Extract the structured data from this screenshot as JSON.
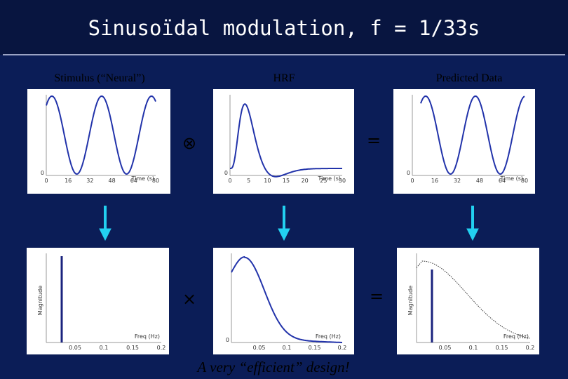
{
  "header": {
    "title": "Sinusoïdal modulation, f = 1/33s"
  },
  "columns": [
    "Stimulus (“Neural”)",
    "HRF",
    "Predicted Data"
  ],
  "operators": [
    "⊗",
    "=",
    "×",
    "="
  ],
  "panels": [
    {
      "xticks": [
        "0",
        "16",
        "32",
        "48",
        "64",
        "80"
      ],
      "xlabel": "Time (s)",
      "origin": "0"
    },
    {
      "xticks": [
        "0",
        "5",
        "10",
        "15",
        "20",
        "25",
        "30"
      ],
      "xlabel": "Time (s)",
      "origin": "0"
    },
    {
      "xticks": [
        "0",
        "16",
        "32",
        "48",
        "64",
        "80"
      ],
      "xlabel": "Time (s)",
      "origin": "0"
    },
    {
      "xticks": [
        "0.05",
        "0.1",
        "0.15",
        "0.2"
      ],
      "xlabel": "Freq (Hz)",
      "ylabel": "Magnitude"
    },
    {
      "xticks": [
        "0.05",
        "0.1",
        "0.15",
        "0.2"
      ],
      "xlabel": "Freq (Hz)",
      "origin": "0"
    },
    {
      "xticks": [
        "0.05",
        "0.1",
        "0.15",
        "0.2"
      ],
      "xlabel": "Freq (Hz)",
      "ylabel": "Magnitude"
    }
  ],
  "caption": "A very “efficient” design!"
}
